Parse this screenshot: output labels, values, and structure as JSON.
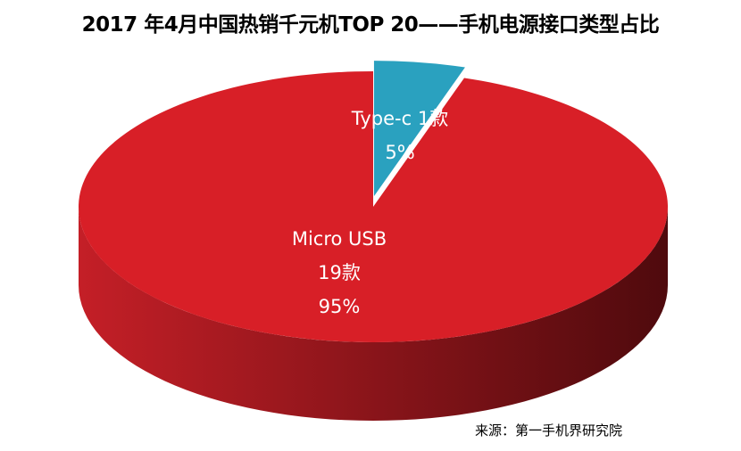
{
  "chart_data": {
    "type": "pie",
    "style": "3d",
    "title": "2017 年4月中国热销千元机TOP 20——手机电源接口类型占比",
    "source": "来源：第一手机界研究院",
    "slices": [
      {
        "name": "Type-c",
        "count": 1,
        "count_label": "1款",
        "percent": 5,
        "percent_label": "5%",
        "color": "#2aa1bf",
        "exploded": true
      },
      {
        "name": "Micro USB",
        "count": 19,
        "count_label": "19款",
        "percent": 95,
        "percent_label": "95%",
        "color": "#d81f27",
        "exploded": false
      }
    ],
    "side_gradient": [
      "#c41f27",
      "#4f0a0d"
    ]
  }
}
